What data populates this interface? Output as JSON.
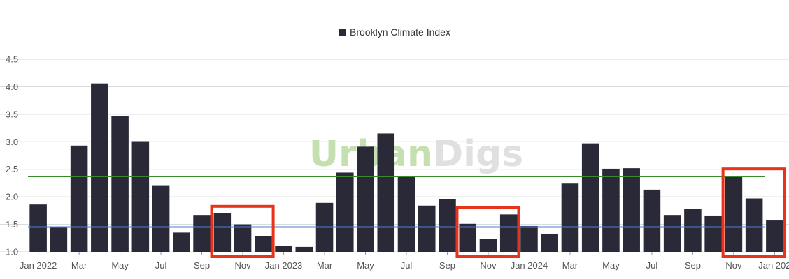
{
  "chart_data": {
    "type": "bar",
    "title": "",
    "xlabel": "",
    "ylabel": "",
    "legend": {
      "position": "top-center"
    },
    "grid": true,
    "ylim": [
      1.0,
      4.5
    ],
    "y_ticks": [
      "1.0",
      "1.5",
      "2.0",
      "2.5",
      "3.0",
      "3.5",
      "4.0",
      "4.5"
    ],
    "series": [
      {
        "name": "Brooklyn Climate Index",
        "color": "#2a2938"
      }
    ],
    "categories": [
      "2022-01",
      "2022-02",
      "2022-03",
      "2022-04",
      "2022-05",
      "2022-06",
      "2022-07",
      "2022-08",
      "2022-09",
      "2022-10",
      "2022-11",
      "2022-12",
      "2023-01",
      "2023-02",
      "2023-03",
      "2023-04",
      "2023-05",
      "2023-06",
      "2023-07",
      "2023-08",
      "2023-09",
      "2023-10",
      "2023-11",
      "2023-12",
      "2024-01",
      "2024-02",
      "2024-03",
      "2024-04",
      "2024-05",
      "2024-06",
      "2024-07",
      "2024-08",
      "2024-09",
      "2024-10",
      "2024-11",
      "2024-12",
      "2025-01"
    ],
    "values": [
      1.86,
      1.44,
      2.93,
      4.06,
      3.47,
      3.01,
      2.21,
      1.35,
      1.67,
      1.7,
      1.5,
      1.29,
      1.11,
      1.09,
      1.89,
      2.44,
      2.91,
      3.15,
      2.36,
      1.84,
      1.96,
      1.51,
      1.24,
      1.68,
      1.47,
      1.33,
      2.24,
      2.97,
      2.51,
      2.52,
      2.13,
      1.67,
      1.78,
      1.66,
      2.38,
      1.97,
      1.57
    ],
    "x_tick_labels": [
      {
        "index": 0,
        "label": "Jan 2022"
      },
      {
        "index": 2,
        "label": "Mar"
      },
      {
        "index": 4,
        "label": "May"
      },
      {
        "index": 6,
        "label": "Jul"
      },
      {
        "index": 8,
        "label": "Sep"
      },
      {
        "index": 10,
        "label": "Nov"
      },
      {
        "index": 12,
        "label": "Jan 2023"
      },
      {
        "index": 14,
        "label": "Mar"
      },
      {
        "index": 16,
        "label": "May"
      },
      {
        "index": 18,
        "label": "Jul"
      },
      {
        "index": 20,
        "label": "Sep"
      },
      {
        "index": 22,
        "label": "Nov"
      },
      {
        "index": 24,
        "label": "Jan 2024"
      },
      {
        "index": 26,
        "label": "Mar"
      },
      {
        "index": 28,
        "label": "May"
      },
      {
        "index": 30,
        "label": "Jul"
      },
      {
        "index": 32,
        "label": "Sep"
      },
      {
        "index": 34,
        "label": "Nov"
      },
      {
        "index": 36,
        "label": "Jan 202"
      }
    ],
    "reference_lines": [
      {
        "value": 2.37,
        "color": "#3a8a2e"
      },
      {
        "value": 1.45,
        "color": "#4a7fd6"
      }
    ],
    "highlight_boxes": [
      {
        "from_index": 9,
        "to_index": 11,
        "color": "#e8321a"
      },
      {
        "from_index": 21,
        "to_index": 23,
        "color": "#e8321a"
      },
      {
        "from_index": 34,
        "to_index": 36,
        "color": "#e8321a"
      }
    ],
    "watermark": {
      "part1": "Urban",
      "part2": "Digs",
      "color1": "#c5e0b0",
      "color2": "#e0e0e0"
    }
  }
}
